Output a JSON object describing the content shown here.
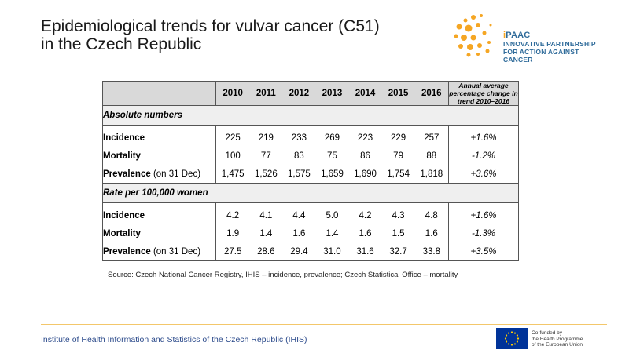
{
  "title": {
    "line1": "Epidemiological trends for vulvar cancer (C51)",
    "line2": "in the Czech Republic"
  },
  "logo": {
    "name_i": "i",
    "name_rest": "PAAC",
    "line1": "INNOVATIVE PARTNERSHIP",
    "line2": "FOR ACTION AGAINST CANCER",
    "colors": {
      "orange": "#f5a623",
      "blue": "#2f6b9a"
    }
  },
  "table": {
    "years": [
      "2010",
      "2011",
      "2012",
      "2013",
      "2014",
      "2015",
      "2016"
    ],
    "trend_header": "Annual average percentage change in trend 2010–2016",
    "sections": [
      {
        "title": "Absolute numbers",
        "rows": [
          {
            "label": "Incidence",
            "suffix": "",
            "values": [
              "225",
              "219",
              "233",
              "269",
              "223",
              "229",
              "257"
            ],
            "trend": "+1.6%"
          },
          {
            "label": "Mortality",
            "suffix": "",
            "values": [
              "100",
              "77",
              "83",
              "75",
              "86",
              "79",
              "88"
            ],
            "trend": "-1.2%"
          },
          {
            "label": "Prevalence",
            "suffix": " (on 31 Dec)",
            "values": [
              "1,475",
              "1,526",
              "1,575",
              "1,659",
              "1,690",
              "1,754",
              "1,818"
            ],
            "trend": "+3.6%"
          }
        ]
      },
      {
        "title": "Rate per 100,000 women",
        "rows": [
          {
            "label": "Incidence",
            "suffix": "",
            "values": [
              "4.2",
              "4.1",
              "4.4",
              "5.0",
              "4.2",
              "4.3",
              "4.8"
            ],
            "trend": "+1.6%"
          },
          {
            "label": "Mortality",
            "suffix": "",
            "values": [
              "1.9",
              "1.4",
              "1.6",
              "1.4",
              "1.6",
              "1.5",
              "1.6"
            ],
            "trend": "-1.3%"
          },
          {
            "label": "Prevalence",
            "suffix": " (on 31 Dec)",
            "values": [
              "27.5",
              "28.6",
              "29.4",
              "31.0",
              "31.6",
              "32.7",
              "33.8"
            ],
            "trend": "+3.5%"
          }
        ]
      }
    ]
  },
  "source": "Source: Czech National Cancer Registry, IHIS – incidence, prevalence; Czech Statistical Office – mortality",
  "footer": {
    "institute": "Institute of Health Information and Statistics of the Czech Republic (IHIS)",
    "eu_line1": "Co-funded by",
    "eu_line2": "the Health Programme",
    "eu_line3": "of the European Union"
  }
}
